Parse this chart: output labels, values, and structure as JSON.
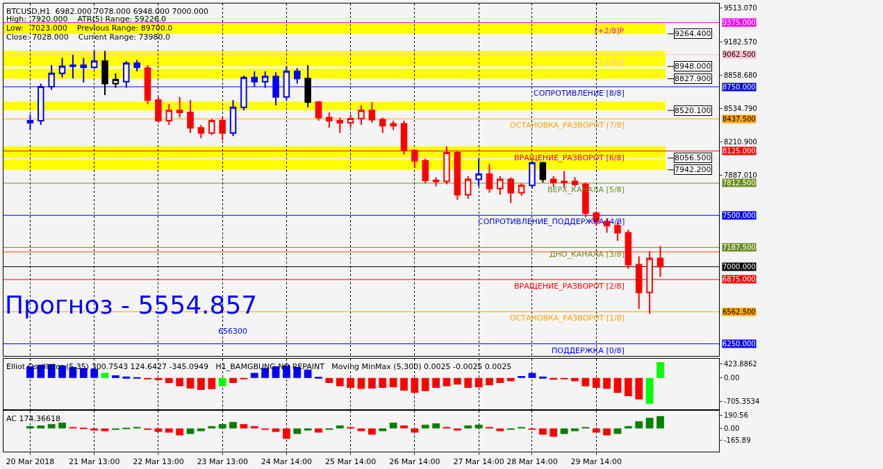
{
  "chart_data": [
    {
      "type": "candlestick",
      "title": "BTCUSD,H1  6982.000 7078.000 6948.000 7000.000",
      "ohlc": [
        [
          8400,
          8480,
          8330,
          8420
        ],
        [
          8420,
          8780,
          8380,
          8750
        ],
        [
          8750,
          8960,
          8720,
          8880
        ],
        [
          8880,
          9030,
          8840,
          8950
        ],
        [
          8950,
          9060,
          8830,
          8960
        ],
        [
          8960,
          9030,
          8790,
          8940
        ],
        [
          8940,
          9100,
          8920,
          9000
        ],
        [
          9000,
          9100,
          8670,
          8780
        ],
        [
          8780,
          8880,
          8740,
          8820
        ],
        [
          8800,
          9000,
          8740,
          8980
        ],
        [
          8980,
          9010,
          8900,
          8940
        ],
        [
          8930,
          8960,
          8580,
          8620
        ],
        [
          8620,
          8650,
          8400,
          8420
        ],
        [
          8420,
          8580,
          8380,
          8520
        ],
        [
          8520,
          8650,
          8450,
          8500
        ],
        [
          8500,
          8620,
          8300,
          8350
        ],
        [
          8350,
          8380,
          8250,
          8300
        ],
        [
          8300,
          8440,
          8280,
          8420
        ],
        [
          8420,
          8450,
          8230,
          8300
        ],
        [
          8300,
          8620,
          8270,
          8550
        ],
        [
          8550,
          8860,
          8520,
          8840
        ],
        [
          8840,
          8900,
          8750,
          8800
        ],
        [
          8800,
          8900,
          8740,
          8850
        ],
        [
          8850,
          8890,
          8570,
          8650
        ],
        [
          8650,
          8950,
          8620,
          8900
        ],
        [
          8900,
          8930,
          8780,
          8830
        ],
        [
          8830,
          8960,
          8550,
          8600
        ],
        [
          8600,
          8610,
          8420,
          8450
        ],
        [
          8450,
          8500,
          8350,
          8420
        ],
        [
          8420,
          8450,
          8300,
          8400
        ],
        [
          8400,
          8480,
          8350,
          8440
        ],
        [
          8440,
          8570,
          8380,
          8520
        ],
        [
          8520,
          8600,
          8400,
          8430
        ],
        [
          8430,
          8450,
          8300,
          8370
        ],
        [
          8370,
          8420,
          8330,
          8390
        ],
        [
          8390,
          8420,
          8090,
          8130
        ],
        [
          8130,
          8140,
          7960,
          8030
        ],
        [
          8030,
          8050,
          7810,
          7840
        ],
        [
          7840,
          7870,
          7780,
          7830
        ],
        [
          7830,
          8170,
          7800,
          8110
        ],
        [
          8110,
          8130,
          7650,
          7700
        ],
        [
          7700,
          7880,
          7660,
          7850
        ],
        [
          7850,
          8050,
          7780,
          7900
        ],
        [
          7900,
          8000,
          7720,
          7760
        ],
        [
          7760,
          7880,
          7700,
          7850
        ],
        [
          7850,
          7870,
          7620,
          7720
        ],
        [
          7720,
          7810,
          7690,
          7790
        ],
        [
          7790,
          8030,
          7760,
          8010
        ],
        [
          8010,
          8020,
          7820,
          7850
        ],
        [
          7850,
          7880,
          7780,
          7820
        ],
        [
          7820,
          7930,
          7770,
          7830
        ],
        [
          7830,
          7870,
          7780,
          7800
        ],
        [
          7800,
          7820,
          7480,
          7520
        ],
        [
          7520,
          7540,
          7400,
          7440
        ],
        [
          7440,
          7470,
          7330,
          7400
        ],
        [
          7400,
          7440,
          7250,
          7330
        ],
        [
          7330,
          7360,
          6980,
          7020
        ],
        [
          7020,
          7100,
          6590,
          6750
        ],
        [
          6750,
          7150,
          6540,
          7080
        ],
        [
          7080,
          7200,
          6900,
          7000
        ],
        null,
        null,
        null,
        null,
        null
      ],
      "colors": [
        "#0000ff",
        "#0000ff",
        "#0000ff",
        "#0000ff",
        "#0000ff",
        "#0000ff",
        "#0000ff",
        "#000000",
        "#000000",
        "#0000ff",
        "#0000ff",
        "#ff0000",
        "#ff0000",
        "#ff0000",
        "#ff0000",
        "#ff0000",
        "#ff0000",
        "#ff0000",
        "#ff0000",
        "#0000ff",
        "#0000ff",
        "#0000ff",
        "#0000ff",
        "#0000ff",
        "#0000ff",
        "#0000ff",
        "#000000",
        "#ff0000",
        "#ff0000",
        "#ff0000",
        "#ff0000",
        "#ff0000",
        "#ff0000",
        "#ff0000",
        "#ff0000",
        "#ff0000",
        "#ff0000",
        "#ff0000",
        "#ff0000",
        "#ff0000",
        "#ff0000",
        "#ff0000",
        "#0000ff",
        "#ff0000",
        "#ff0000",
        "#ff0000",
        "#ff0000",
        "#0000ff",
        "#000000",
        "#ff0000",
        "#ff0000",
        "#ff0000",
        "#ff0000",
        "#ff0000",
        "#ff0000",
        "#ff0000",
        "#ff0000",
        "#ff0000",
        "#ff0000",
        "#ff0000",
        null,
        null,
        null,
        null,
        null
      ],
      "ylim": [
        6134,
        9560
      ],
      "yticks": [
        {
          "value": 9513.07,
          "label": "9513.070"
        },
        {
          "value": 9182.57,
          "label": "9182.570"
        },
        {
          "value": 8858.68,
          "label": "8858.680"
        },
        {
          "value": 8534.79,
          "label": "8534.790"
        },
        {
          "value": 8210.9,
          "label": "8210.900"
        },
        {
          "value": 7887.01,
          "label": "7887.010"
        }
      ],
      "grid": "x",
      "tick_labels": "y",
      "ref_lines": [
        {
          "axis": "y",
          "value": 9375,
          "label": "9375.000",
          "color": "#ff00ff"
        },
        {
          "axis": "y",
          "value": 9062.5,
          "label": "9062.500",
          "color": "#ffc0cb"
        },
        {
          "axis": "y",
          "value": 8750,
          "label": "8750.000",
          "color": "#0000ff"
        },
        {
          "axis": "y",
          "value": 8437.5,
          "label": "8437.500",
          "color": "#ffa500"
        },
        {
          "axis": "y",
          "value": 8125,
          "label": "8125.000",
          "color": "#ff0000"
        },
        {
          "axis": "y",
          "value": 7812.5,
          "label": "7812.500",
          "color": "#6b8e23"
        },
        {
          "axis": "y",
          "value": 7500,
          "label": "7500.000",
          "color": "#0000ff"
        },
        {
          "axis": "y",
          "value": 7187.5,
          "label": "7187.500",
          "color": "#6b8e23"
        },
        {
          "axis": "y",
          "value": 7144.4,
          "color": "#ff4500"
        },
        {
          "axis": "y",
          "value": 7000,
          "label": "7000.000",
          "color": "#000000"
        },
        {
          "axis": "y",
          "value": 6875,
          "label": "6875.000",
          "color": "#ff0000"
        },
        {
          "axis": "y",
          "value": 6562.5,
          "label": "6562.500",
          "color": "#ffa500"
        },
        {
          "axis": "y",
          "value": 6250,
          "label": "6250.000",
          "color": "#0000ff"
        }
      ],
      "bands": [
        {
          "axis": "y",
          "from": 9264.4,
          "to": 9375,
          "label": "9264.400",
          "color": "#ffff00"
        },
        {
          "axis": "y",
          "from": 8948,
          "to": 9100,
          "label": "8948.000",
          "color": "#ffff00"
        },
        {
          "axis": "y",
          "from": 8827.9,
          "to": 8925,
          "label": "8827.900",
          "color": "#ffff00"
        },
        {
          "axis": "y",
          "from": 8520.1,
          "to": 8605,
          "label": "8520.100",
          "color": "#ffff00"
        },
        {
          "axis": "y",
          "from": 8056.5,
          "to": 8170,
          "label": "8056.500",
          "color": "#ffff00"
        },
        {
          "axis": "y",
          "from": 7942.2,
          "to": 8043,
          "label": "7942.200",
          "color": "#ffff00"
        }
      ],
      "annotations": [
        "High:  7920.000    ATR(5) Range: 59226.0",
        "Low:   7023.000    Previous Range: 89700.0",
        "Close: 7028.000    Current Range: 73980.0",
        "Прогноз - 5554.857",
        "656300",
        {
          "text": "[+2/8]P",
          "y": 9360
        },
        {
          "text": "[+1/8]P",
          "y": 9050
        },
        {
          "text": "СОПРОТИВЛЕНИЕ [8/8]",
          "y": 8750
        },
        {
          "text": "ОСТАНОВКА_РАЗВОРОТ [7/8]",
          "y": 8437.5
        },
        {
          "text": "ВРАЩЕНИЕ_РАЗВОРОТ [6/8]",
          "y": 8125
        },
        {
          "text": "ВЕРХ_КАНАЛА [5/8]",
          "y": 7812.5
        },
        {
          "text": "СОПРОТИВЛЕНИЕ_ПОДДЕРЖКА [4/8]",
          "y": 7500
        },
        {
          "text": "ДНО_КАНАЛА [3/8]",
          "y": 7187.5
        },
        {
          "text": "ВРАЩЕНИЕ_РАЗВОРОТ [2/8]",
          "y": 6875
        },
        {
          "text": "ОСТАНОВКА_РАЗВОРОТ [1/8]",
          "y": 6562.5
        },
        {
          "text": "ПОДДЕРЖКА [0/8]",
          "y": 6250
        }
      ]
    },
    {
      "type": "bar",
      "title": "Elliot Oscillator (5,35) 300.7543 124.6427 -345.0949   H1_BAMGBUNG NO REPAINT   Moving MinMax (5,300) 0.0025 -0.0025 0.0025",
      "values": [
        350,
        400,
        420,
        380,
        330,
        300,
        280,
        150,
        80,
        40,
        20,
        -30,
        -60,
        -150,
        -250,
        -320,
        -360,
        -340,
        -250,
        -150,
        -40,
        150,
        300,
        350,
        380,
        330,
        250,
        30,
        -150,
        -250,
        -300,
        -330,
        -320,
        -300,
        -280,
        -380,
        -450,
        -400,
        -300,
        -250,
        -200,
        -300,
        -280,
        -220,
        -150,
        -100,
        60,
        150,
        40,
        -50,
        -30,
        -100,
        -250,
        -300,
        -330,
        -450,
        -550,
        -650,
        -780,
        480,
        null,
        null,
        null,
        null,
        null
      ],
      "colors": [
        "#0000ff",
        "#0000ff",
        "#0000ff",
        "#0000ff",
        "#0000ff",
        "#0000ff",
        "#0000ff",
        "#00ff00",
        "#0000ff",
        "#0000ff",
        "#0000ff",
        "#ff0000",
        "#ff0000",
        "#ff0000",
        "#ff0000",
        "#ff0000",
        "#ff0000",
        "#ff0000",
        "#00ff00",
        "#ff0000",
        "#ff0000",
        "#0000ff",
        "#0000ff",
        "#0000ff",
        "#0000ff",
        "#0000ff",
        "#0000ff",
        "#0000ff",
        "#ff0000",
        "#ff0000",
        "#ff0000",
        "#ff0000",
        "#ff0000",
        "#ff0000",
        "#ff0000",
        "#ff0000",
        "#ff0000",
        "#ff0000",
        "#ff0000",
        "#ff0000",
        "#ff0000",
        "#ff0000",
        "#ff0000",
        "#ff0000",
        "#ff0000",
        "#ff0000",
        "#0000ff",
        "#0000ff",
        "#0000ff",
        "#ff0000",
        "#ff0000",
        "#ff0000",
        "#ff0000",
        "#ff0000",
        "#ff0000",
        "#ff0000",
        "#ff0000",
        "#ff0000",
        "#00ff00",
        "#00ff00",
        null,
        null,
        null,
        null,
        null
      ],
      "ylim": [
        -940,
        590
      ],
      "yticks": [
        {
          "value": 423.8862,
          "label": "423.8862"
        },
        {
          "value": 0,
          "label": "0.00"
        },
        {
          "value": -705.3534,
          "label": "-705.3534"
        }
      ],
      "grid": "x",
      "tick_labels": "y"
    },
    {
      "type": "bar",
      "title": "AC 174.36618",
      "categories": [
        "20 Mar 2018",
        null,
        null,
        null,
        null,
        null,
        "21 Mar 13:00",
        null,
        null,
        null,
        null,
        null,
        "22 Mar 13:00",
        null,
        null,
        null,
        null,
        null,
        "23 Mar 13:00",
        null,
        null,
        null,
        null,
        null,
        "24 Mar 14:00",
        null,
        null,
        null,
        null,
        null,
        "25 Mar 14:00",
        null,
        null,
        null,
        null,
        null,
        "26 Mar 14:00",
        null,
        null,
        null,
        null,
        null,
        "27 Mar 14:00",
        null,
        null,
        null,
        null,
        "28 Mar 14:00",
        null,
        null,
        null,
        null,
        null,
        "29 Mar 14:00",
        null,
        null,
        null,
        null,
        null,
        null,
        null,
        null,
        null,
        null,
        null
      ],
      "values": [
        30,
        40,
        60,
        80,
        20,
        -10,
        -30,
        -40,
        -20,
        -10,
        10,
        -20,
        -50,
        -60,
        -100,
        -80,
        -40,
        30,
        60,
        90,
        60,
        30,
        -20,
        -50,
        -150,
        -80,
        -30,
        -60,
        -20,
        40,
        20,
        -40,
        -90,
        -40,
        80,
        40,
        -60,
        50,
        70,
        20,
        -30,
        40,
        50,
        10,
        -40,
        -20,
        10,
        -20,
        -90,
        -120,
        -80,
        -40,
        10,
        -60,
        -100,
        -80,
        30,
        100,
        150,
        174,
        null,
        null,
        null,
        null,
        null
      ],
      "colors": [
        "#008000",
        "#008000",
        "#008000",
        "#008000",
        "#ff0000",
        "#ff0000",
        "#ff0000",
        "#ff0000",
        "#008000",
        "#008000",
        "#008000",
        "#ff0000",
        "#ff0000",
        "#ff0000",
        "#ff0000",
        "#008000",
        "#008000",
        "#008000",
        "#008000",
        "#008000",
        "#ff0000",
        "#ff0000",
        "#ff0000",
        "#ff0000",
        "#ff0000",
        "#008000",
        "#008000",
        "#ff0000",
        "#008000",
        "#008000",
        "#ff0000",
        "#ff0000",
        "#ff0000",
        "#008000",
        "#008000",
        "#ff0000",
        "#ff0000",
        "#008000",
        "#008000",
        "#ff0000",
        "#ff0000",
        "#008000",
        "#008000",
        "#ff0000",
        "#ff0000",
        "#008000",
        "#008000",
        "#ff0000",
        "#ff0000",
        "#ff0000",
        "#008000",
        "#008000",
        "#008000",
        "#ff0000",
        "#ff0000",
        "#008000",
        "#008000",
        "#008000",
        "#008000",
        "#008000",
        null,
        null,
        null,
        null,
        null
      ],
      "ylim": [
        -333,
        256
      ],
      "yticks": [
        {
          "value": 190.56,
          "label": "190.56"
        },
        {
          "value": 0,
          "label": "0.00"
        },
        {
          "value": -165.89,
          "label": "-165.89"
        }
      ],
      "grid": "x"
    }
  ]
}
